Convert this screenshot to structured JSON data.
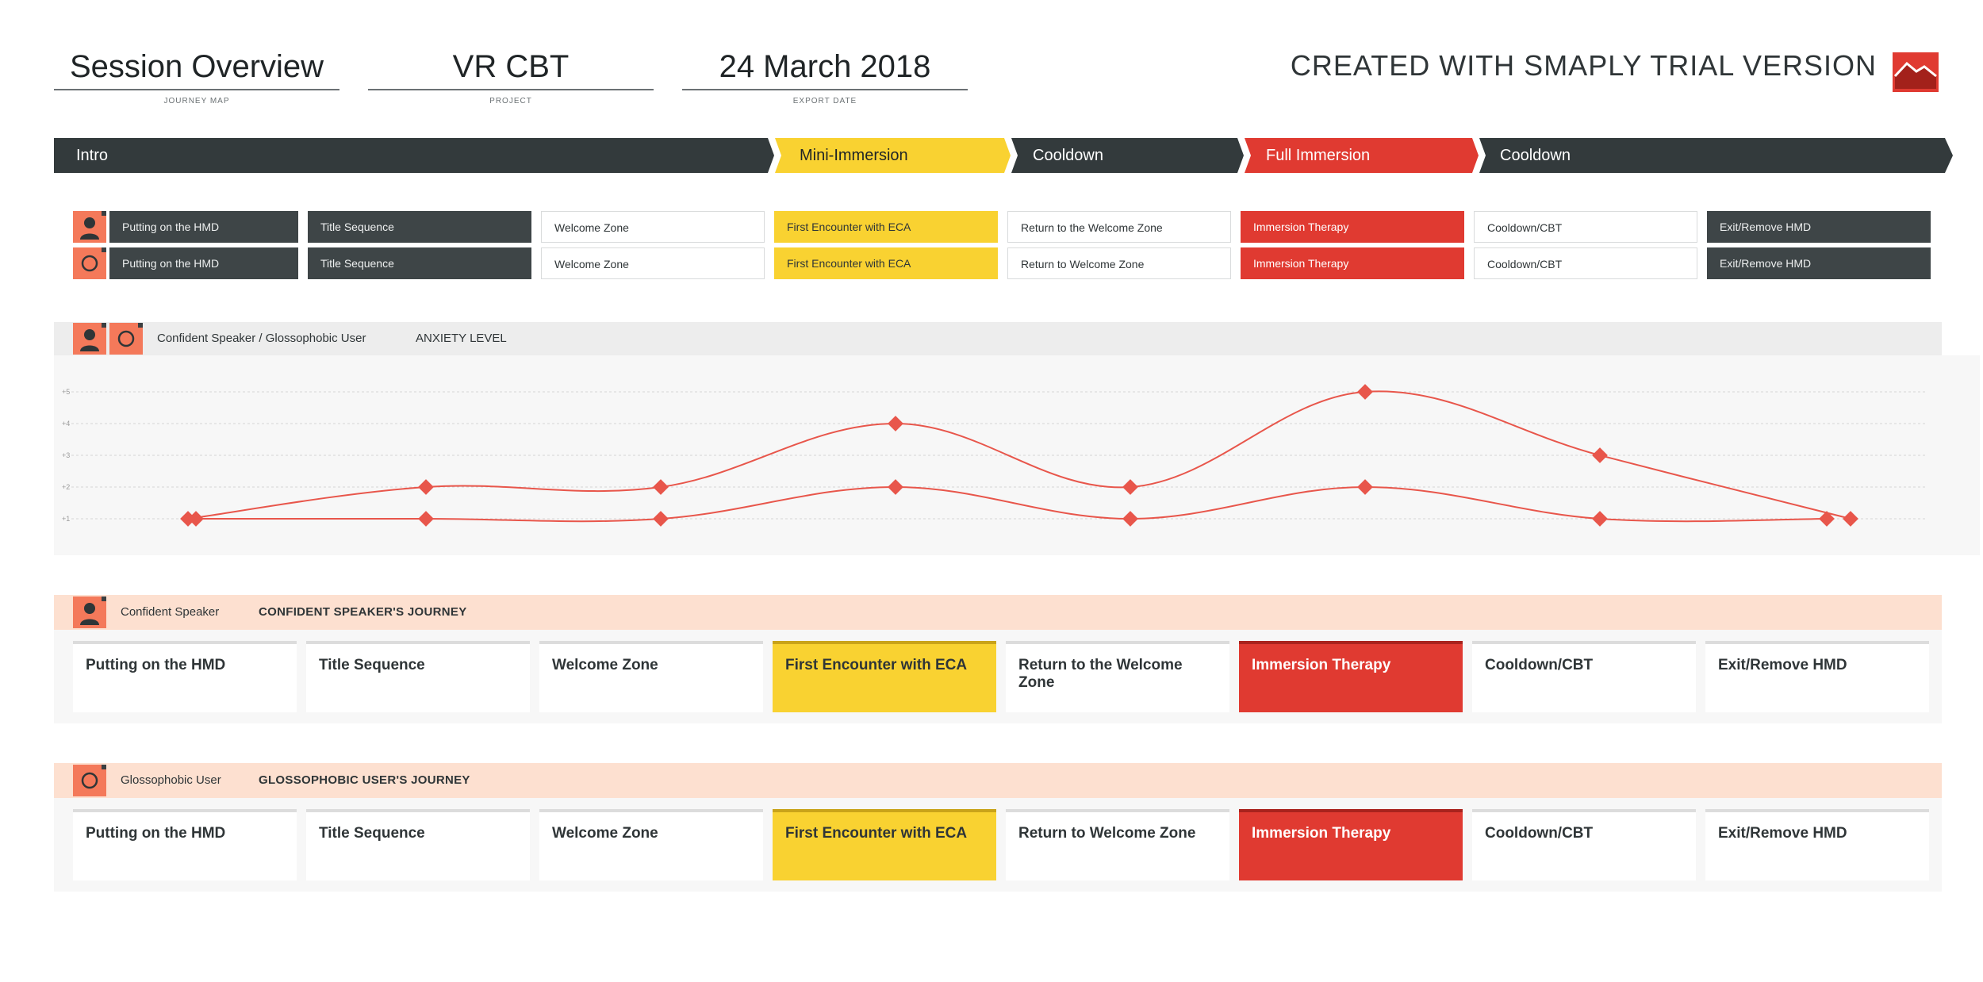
{
  "header": {
    "journey_map": {
      "value": "Session Overview",
      "label": "JOURNEY MAP"
    },
    "project": {
      "value": "VR CBT",
      "label": "PROJECT"
    },
    "export_date": {
      "value": "24 March 2018",
      "label": "EXPORT DATE"
    },
    "trial_notice": "CREATED WITH SMAPLY TRIAL VERSION",
    "logo_icon": "smaply-mountain-logo-icon"
  },
  "phases": [
    {
      "label": "Intro",
      "style": "dark"
    },
    {
      "label": "Mini-Immersion",
      "style": "yellow"
    },
    {
      "label": "Cooldown",
      "style": "dark"
    },
    {
      "label": "Full Immersion",
      "style": "red"
    },
    {
      "label": "Cooldown",
      "style": "dark"
    }
  ],
  "step_rows": [
    {
      "persona_icon": "person-silhouette-icon",
      "steps": [
        {
          "label": "Putting on the HMD",
          "style": "dark"
        },
        {
          "label": "Title Sequence",
          "style": "dark"
        },
        {
          "label": "Welcome Zone",
          "style": "white"
        },
        {
          "label": "First Encounter with ECA",
          "style": "yellow"
        },
        {
          "label": "Return to the Welcome Zone",
          "style": "white"
        },
        {
          "label": "Immersion Therapy",
          "style": "red"
        },
        {
          "label": "Cooldown/CBT",
          "style": "white"
        },
        {
          "label": "Exit/Remove HMD",
          "style": "dark"
        }
      ]
    },
    {
      "persona_icon": "circle-avatar-icon",
      "steps": [
        {
          "label": "Putting on the HMD",
          "style": "dark"
        },
        {
          "label": "Title Sequence",
          "style": "dark"
        },
        {
          "label": "Welcome Zone",
          "style": "white"
        },
        {
          "label": "First Encounter with ECA",
          "style": "yellow"
        },
        {
          "label": "Return to Welcome Zone",
          "style": "white"
        },
        {
          "label": "Immersion Therapy",
          "style": "red"
        },
        {
          "label": "Cooldown/CBT",
          "style": "white"
        },
        {
          "label": "Exit/Remove HMD",
          "style": "dark"
        }
      ]
    }
  ],
  "chart_header": {
    "personas": "Confident Speaker / Glossophobic User",
    "title": "ANXIETY LEVEL"
  },
  "chart_data": {
    "type": "line",
    "title": "ANXIETY LEVEL",
    "ylim": [
      1,
      5
    ],
    "yticks": [
      "+1",
      "+2",
      "+3",
      "+4",
      "+5"
    ],
    "grid": true,
    "line_color": "#e8564b",
    "series": [
      {
        "name": "Glossophobic User",
        "values": [
          1,
          2,
          2,
          4,
          2,
          5,
          3,
          1
        ]
      },
      {
        "name": "Confident Speaker",
        "values": [
          1,
          1,
          1,
          2,
          1,
          2,
          1,
          1
        ]
      }
    ]
  },
  "journeys": [
    {
      "persona": "Confident Speaker",
      "title": "CONFIDENT SPEAKER'S JOURNEY",
      "persona_icon": "person-silhouette-icon",
      "steps": [
        {
          "label": "Putting on the HMD",
          "style": "white"
        },
        {
          "label": "Title Sequence",
          "style": "white"
        },
        {
          "label": "Welcome Zone",
          "style": "white"
        },
        {
          "label": "First Encounter with ECA",
          "style": "yellow"
        },
        {
          "label": "Return to the Welcome Zone",
          "style": "white"
        },
        {
          "label": "Immersion Therapy",
          "style": "red"
        },
        {
          "label": "Cooldown/CBT",
          "style": "white"
        },
        {
          "label": "Exit/Remove HMD",
          "style": "white"
        }
      ]
    },
    {
      "persona": "Glossophobic User",
      "title": "GLOSSOPHOBIC USER'S JOURNEY",
      "persona_icon": "circle-avatar-icon",
      "steps": [
        {
          "label": "Putting on the HMD",
          "style": "white"
        },
        {
          "label": "Title Sequence",
          "style": "white"
        },
        {
          "label": "Welcome Zone",
          "style": "white"
        },
        {
          "label": "First Encounter with ECA",
          "style": "yellow"
        },
        {
          "label": "Return to Welcome Zone",
          "style": "white"
        },
        {
          "label": "Immersion Therapy",
          "style": "red"
        },
        {
          "label": "Cooldown/CBT",
          "style": "white"
        },
        {
          "label": "Exit/Remove HMD",
          "style": "white"
        }
      ]
    }
  ],
  "colors": {
    "dark": "#3e4547",
    "yellow": "#f9d231",
    "red": "#e03a31",
    "accent": "#f4795a",
    "header_bg": "#fde0d0"
  }
}
